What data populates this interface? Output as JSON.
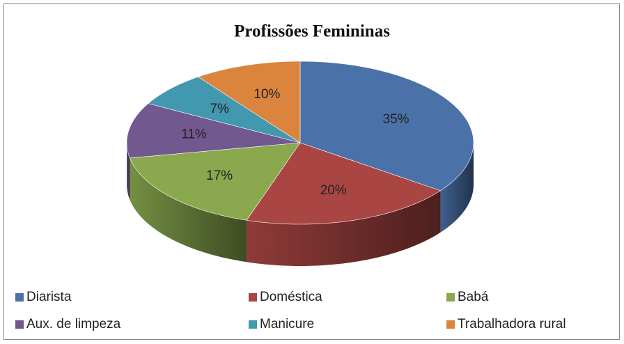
{
  "chart_data": {
    "type": "pie",
    "title": "Profissões Femininas",
    "categories": [
      "Diarista",
      "Doméstica",
      "Babá",
      "Aux. de limpeza",
      "Manicure",
      "Trabalhadora rural"
    ],
    "values": [
      35,
      20,
      17,
      11,
      7,
      10
    ],
    "value_labels": [
      "35%",
      "20%",
      "17%",
      "11%",
      "7%",
      "10%"
    ],
    "colors": [
      "#4a72a8",
      "#a94542",
      "#8aa84e",
      "#71588f",
      "#4298af",
      "#db843d"
    ],
    "legend": "bottom"
  }
}
